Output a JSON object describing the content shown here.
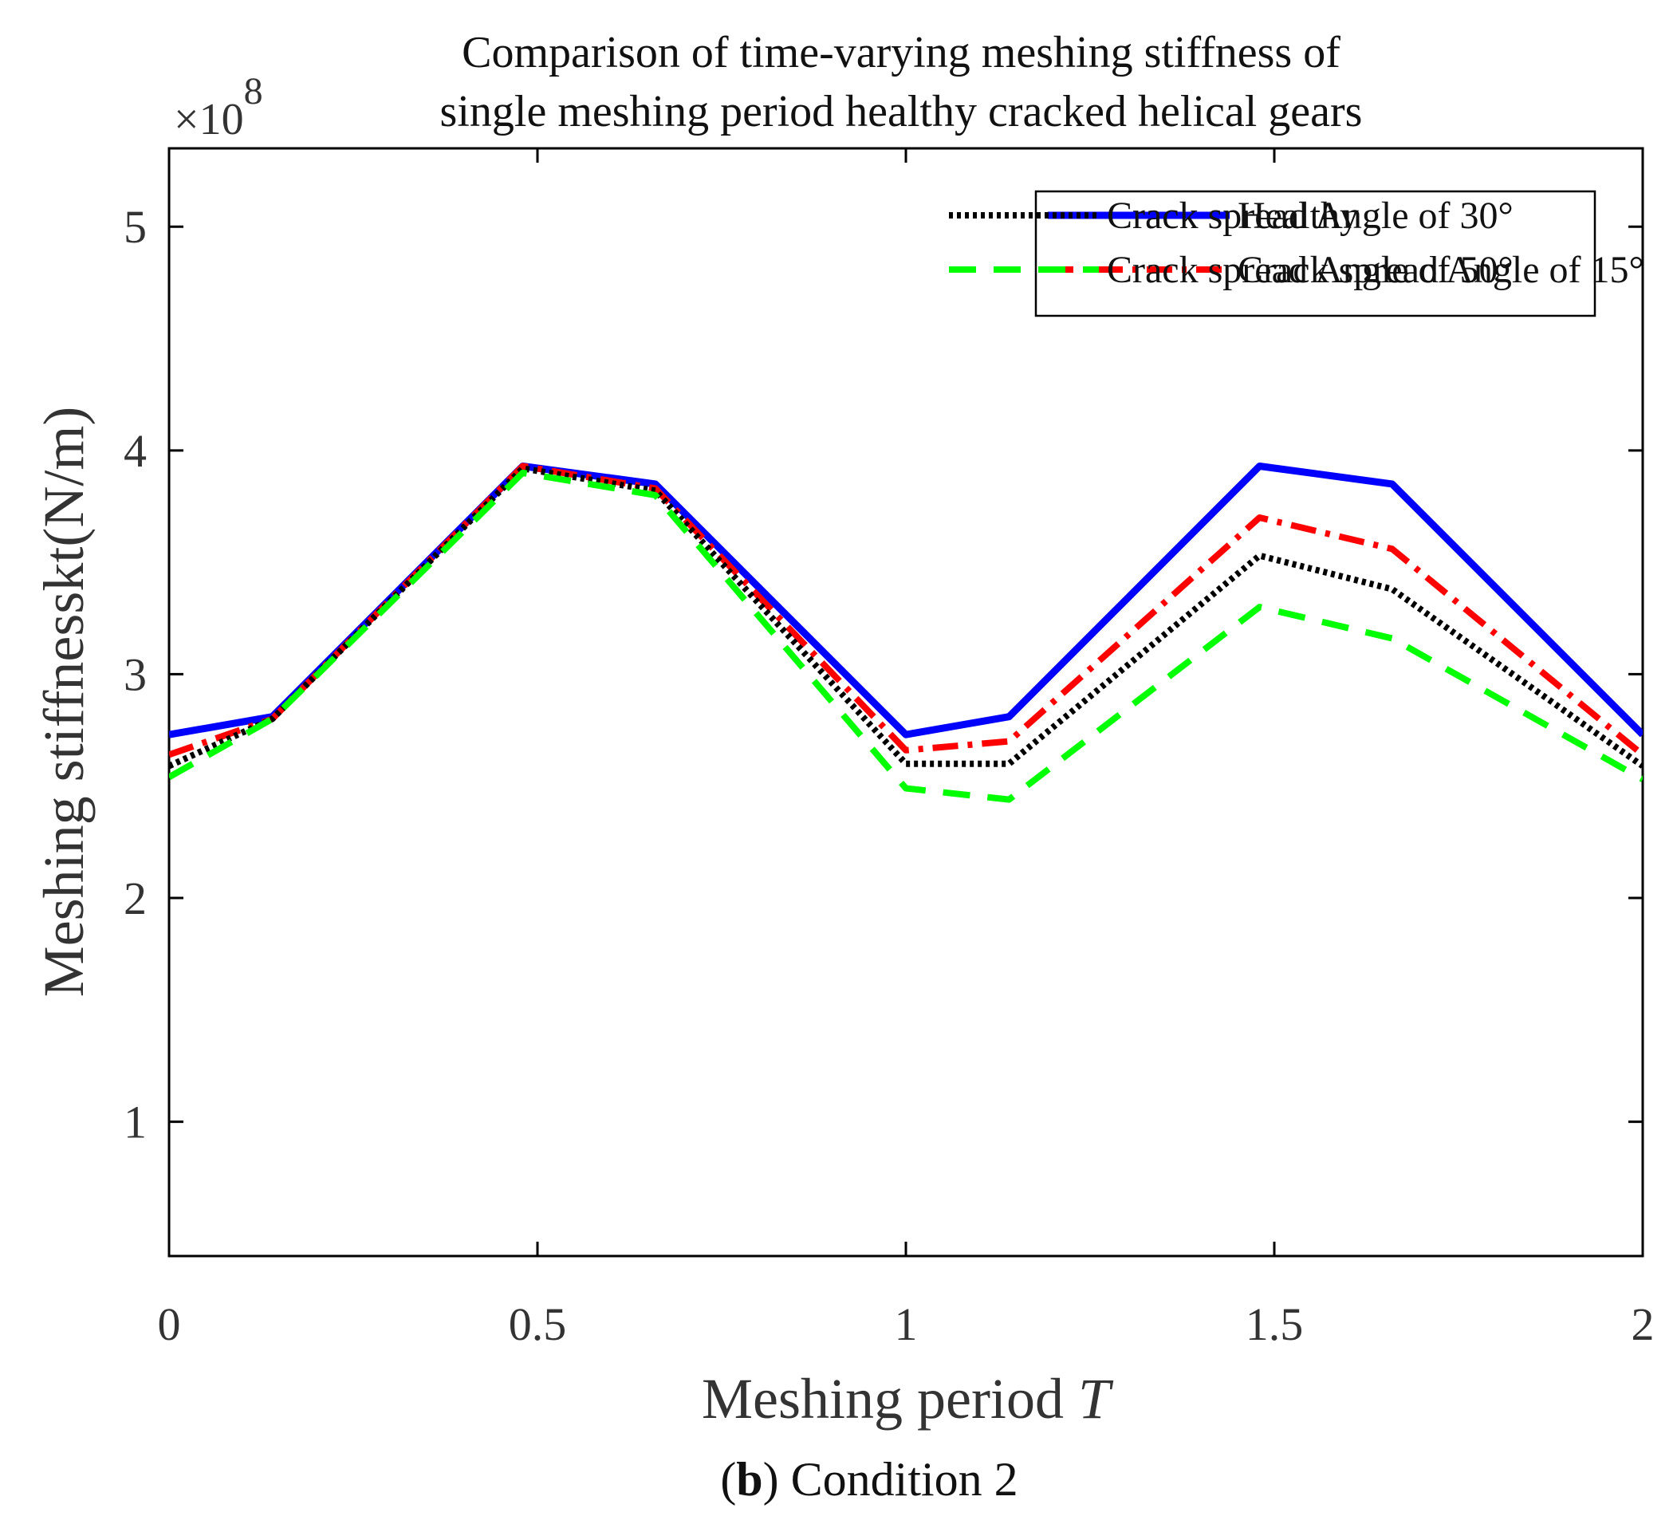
{
  "chart_data": {
    "type": "line",
    "title": [
      "Comparison of time-varying meshing stiffness of",
      "single meshing period healthy cracked helical gears"
    ],
    "exponent_label": {
      "base": "×10",
      "power": "8"
    },
    "xlabel": {
      "text": "Meshing period ",
      "italic": "T"
    },
    "ylabel": "Meshing stiffnesskt(N/m)",
    "caption": {
      "letter": "b",
      "text": "Condition 2"
    },
    "xlim": [
      0,
      2
    ],
    "ylim": [
      0.4,
      5.35
    ],
    "xticks": [
      0,
      0.5,
      1,
      1.5,
      2
    ],
    "xtick_labels": [
      "0",
      "0.5",
      "1",
      "1.5",
      "2"
    ],
    "yticks": [
      1,
      2,
      3,
      4,
      5
    ],
    "ytick_labels": [
      "1",
      "2",
      "3",
      "4",
      "5"
    ],
    "grid": false,
    "legend_position": "top",
    "series": [
      {
        "name": "Healthy",
        "color": "#0000ff",
        "dash": "solid",
        "x": [
          0,
          0.14,
          0.48,
          0.66,
          1.0,
          1.14,
          1.48,
          1.66,
          2.0
        ],
        "y": [
          2.73,
          2.81,
          3.93,
          3.85,
          2.73,
          2.81,
          3.93,
          3.85,
          2.73
        ]
      },
      {
        "name": "Crack spread Angle of 15°",
        "color": "#ff0000",
        "dash": "dashdot",
        "x": [
          0,
          0.14,
          0.48,
          0.66,
          1.0,
          1.14,
          1.48,
          1.66,
          2.0
        ],
        "y": [
          2.64,
          2.8,
          3.93,
          3.83,
          2.66,
          2.7,
          3.7,
          3.56,
          2.64
        ]
      },
      {
        "name": "Crack spread Angle of 30°",
        "color": "#000000",
        "dash": "dotted",
        "x": [
          0,
          0.14,
          0.48,
          0.66,
          1.0,
          1.14,
          1.48,
          1.66,
          2.0
        ],
        "y": [
          2.59,
          2.8,
          3.92,
          3.82,
          2.6,
          2.6,
          3.53,
          3.38,
          2.59
        ]
      },
      {
        "name": "Crack spread Angle of 50°",
        "color": "#00ff00",
        "dash": "dashed",
        "x": [
          0,
          0.14,
          0.48,
          0.66,
          1.0,
          1.14,
          1.48,
          1.66,
          2.0
        ],
        "y": [
          2.54,
          2.8,
          3.9,
          3.8,
          2.49,
          2.44,
          3.3,
          3.16,
          2.53
        ]
      }
    ]
  }
}
